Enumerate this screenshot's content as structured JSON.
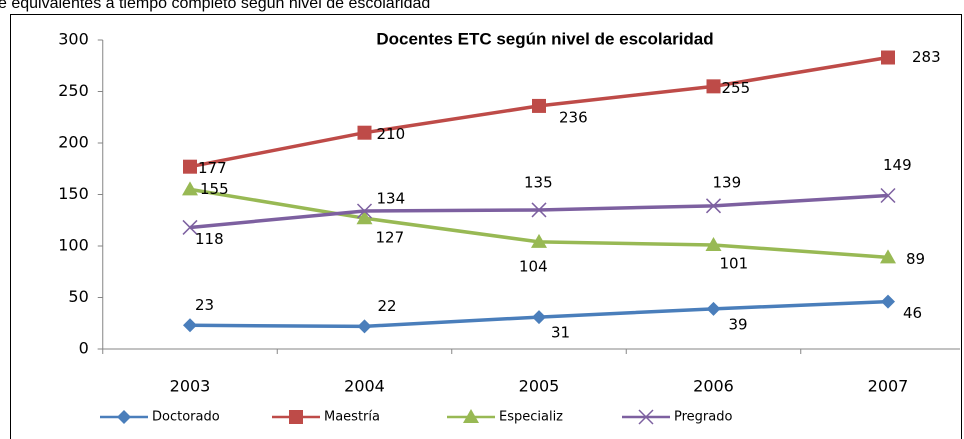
{
  "header_text": "e equivalentes a tiempo completo según nivel de escolaridad",
  "chart_data": {
    "type": "line",
    "title": "Docentes ETC según nivel de escolaridad",
    "categories": [
      "2003",
      "2004",
      "2005",
      "2006",
      "2007"
    ],
    "series": [
      {
        "name": "Doctorado",
        "color": "#4a7ebb",
        "values": [
          23,
          22,
          31,
          39,
          46
        ]
      },
      {
        "name": "Maestría",
        "color": "#be4b48",
        "values": [
          177,
          210,
          236,
          255,
          283
        ]
      },
      {
        "name": "Especializ",
        "color": "#98b954",
        "values": [
          155,
          127,
          104,
          101,
          89
        ]
      },
      {
        "name": "Pregrado",
        "color": "#7d60a0",
        "values": [
          118,
          134,
          135,
          139,
          149
        ]
      }
    ],
    "ylim": [
      0,
      300
    ],
    "yticks": [
      0,
      50,
      100,
      150,
      200,
      250,
      300
    ],
    "legend": "bottom"
  }
}
